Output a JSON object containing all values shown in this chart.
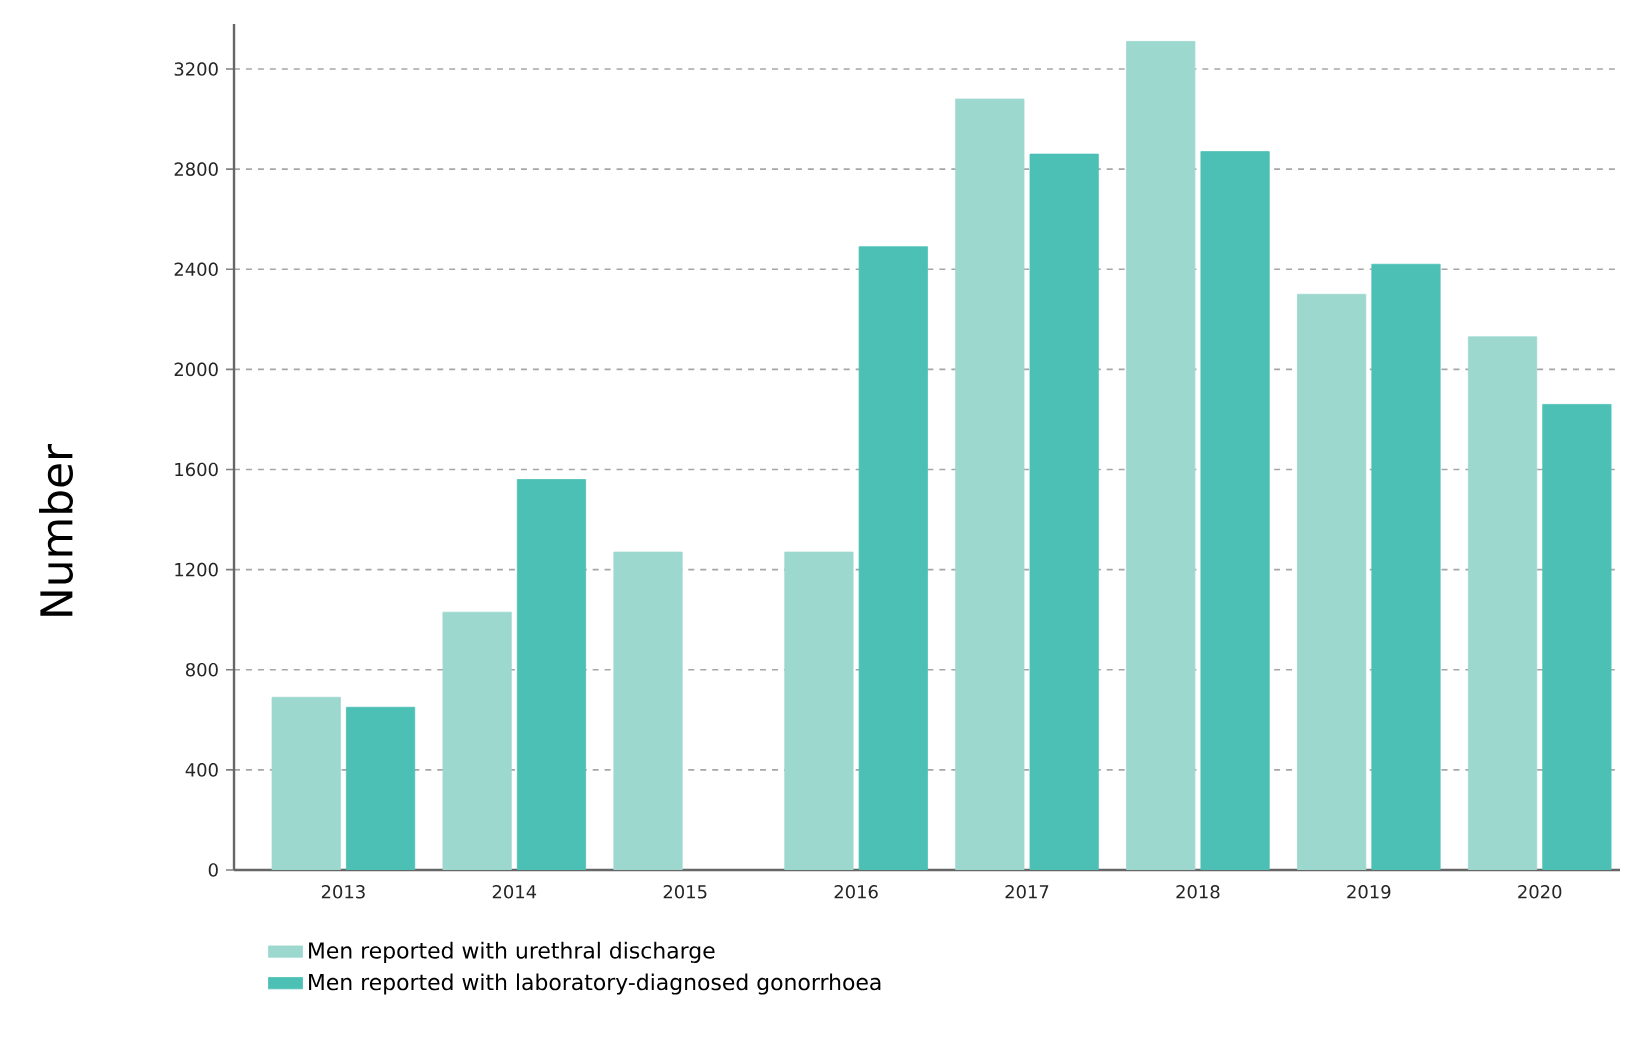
{
  "chart_data": {
    "type": "bar",
    "ylabel": "Number",
    "categories": [
      "2013",
      "2014",
      "2015",
      "2016",
      "2017",
      "2018",
      "2019",
      "2020"
    ],
    "series": [
      {
        "name": "Men reported with urethral discharge",
        "color": "#9dd8cf",
        "values": [
          690,
          1030,
          1270,
          1270,
          3080,
          3310,
          2300,
          2130
        ]
      },
      {
        "name": "Men reported with laboratory-diagnosed gonorrhoea",
        "color": "#4cc0b5",
        "values": [
          650,
          1560,
          null,
          2490,
          2860,
          2870,
          2420,
          1860
        ]
      }
    ],
    "ylim": [
      0,
      3380
    ],
    "yticks": [
      0,
      400,
      800,
      1200,
      1600,
      2000,
      2400,
      2800,
      3200
    ],
    "grid": "y",
    "legend": "bottom"
  }
}
